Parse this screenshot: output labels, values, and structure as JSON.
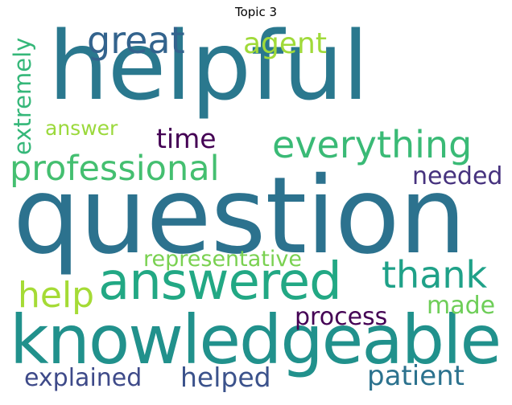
{
  "title": "Topic 3",
  "words": [
    {
      "text": "helpful",
      "color": "#2a788e"
    },
    {
      "text": "question",
      "color": "#2c728e"
    },
    {
      "text": "knowledgeable",
      "color": "#21918c"
    },
    {
      "text": "answered",
      "color": "#22a884"
    },
    {
      "text": "professional",
      "color": "#44bf70"
    },
    {
      "text": "everything",
      "color": "#3aba76"
    },
    {
      "text": "great",
      "color": "#33638d"
    },
    {
      "text": "agent",
      "color": "#a0da39"
    },
    {
      "text": "extremely",
      "color": "#35b779"
    },
    {
      "text": "answer",
      "color": "#9bd93c"
    },
    {
      "text": "time",
      "color": "#440154"
    },
    {
      "text": "needed",
      "color": "#46327e"
    },
    {
      "text": "thank",
      "color": "#1fa188"
    },
    {
      "text": "representative",
      "color": "#7ad151"
    },
    {
      "text": "help",
      "color": "#a5db36"
    },
    {
      "text": "made",
      "color": "#6ece58"
    },
    {
      "text": "process",
      "color": "#440154"
    },
    {
      "text": "explained",
      "color": "#3e4a89"
    },
    {
      "text": "helped",
      "color": "#3b528b"
    },
    {
      "text": "patient",
      "color": "#2c728e"
    }
  ]
}
